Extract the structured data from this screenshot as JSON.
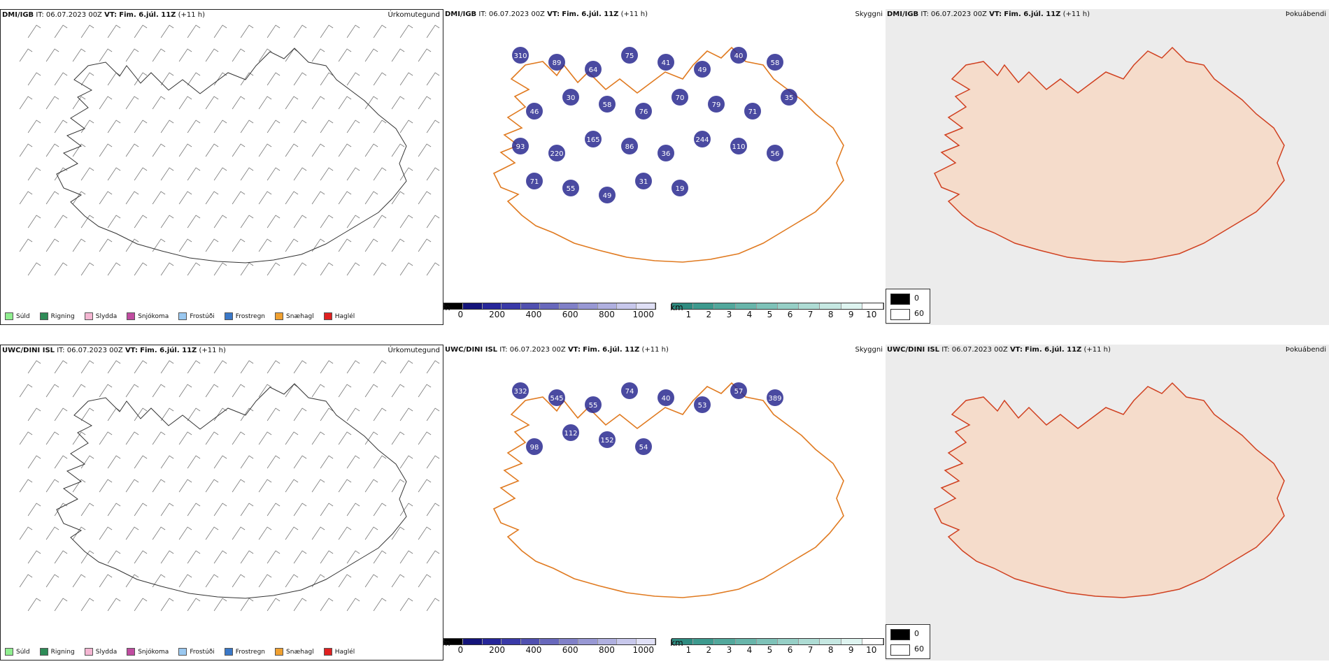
{
  "rows": [
    {
      "model": "DMI/IGB",
      "it_label": "IT:",
      "it_value": "06.07.2023 00Z",
      "vt_label": "VT:",
      "vt_value": "Fim. 6.júl. 11Z",
      "lead": "(+11 h)",
      "precip_title": "Úrkomutegund",
      "vis_title": "Skyggni",
      "fog_title": "Þokuábendi",
      "cloud_labels": [
        "310",
        "89",
        "64",
        "75",
        "41",
        "49",
        "40",
        "58",
        "46",
        "30",
        "58",
        "76",
        "70",
        "79",
        "71",
        "35",
        "93",
        "220",
        "165",
        "86",
        "36",
        "244",
        "110",
        "56",
        "71",
        "55",
        "49",
        "31",
        "19"
      ]
    },
    {
      "model": "UWC/DINI ISL",
      "it_label": "IT:",
      "it_value": "06.07.2023 00Z",
      "vt_label": "VT:",
      "vt_value": "Fim. 6.júl. 11Z",
      "lead": "(+11 h)",
      "precip_title": "Úrkomutegund",
      "vis_title": "Skyggni",
      "fog_title": "Þokuábendi",
      "cloud_labels": [
        "332",
        "545",
        "55",
        "74",
        "40",
        "53",
        "57",
        "389",
        "98",
        "112",
        "152",
        "54"
      ]
    }
  ],
  "precip_legend": [
    {
      "label": "Súld",
      "color": "#90ee90"
    },
    {
      "label": "Rigning",
      "color": "#2e8b57"
    },
    {
      "label": "Slydda",
      "color": "#f4b6d2"
    },
    {
      "label": "Snjókoma",
      "color": "#c04ca0"
    },
    {
      "label": "Frostúði",
      "color": "#9ac8f0"
    },
    {
      "label": "Frostregn",
      "color": "#3a78c8"
    },
    {
      "label": "Snæhagl",
      "color": "#f0a030"
    },
    {
      "label": "Haglél",
      "color": "#e02020"
    }
  ],
  "cloudbase_bar": {
    "unit": "m",
    "ticks": [
      "0",
      "200",
      "400",
      "600",
      "800",
      "1000"
    ],
    "colors": [
      "#000000",
      "#14147a",
      "#26269a",
      "#3a3aa8",
      "#5050b0",
      "#6868bc",
      "#8080c8",
      "#9898d4",
      "#b0b0e0",
      "#c8c8ec",
      "#e0e0f6"
    ]
  },
  "visibility_bar": {
    "unit": "km",
    "ticks": [
      "1",
      "2",
      "3",
      "4",
      "5",
      "6",
      "7",
      "8",
      "9",
      "10"
    ],
    "colors": [
      "#2e8b80",
      "#3d9a8e",
      "#52a89c",
      "#68b5aa",
      "#7ec2b8",
      "#96cfc6",
      "#aedcd4",
      "#c6e8e2",
      "#def4f0",
      "#ffffff"
    ]
  },
  "fog_legend": {
    "black_label": "0",
    "white_label": "60"
  }
}
